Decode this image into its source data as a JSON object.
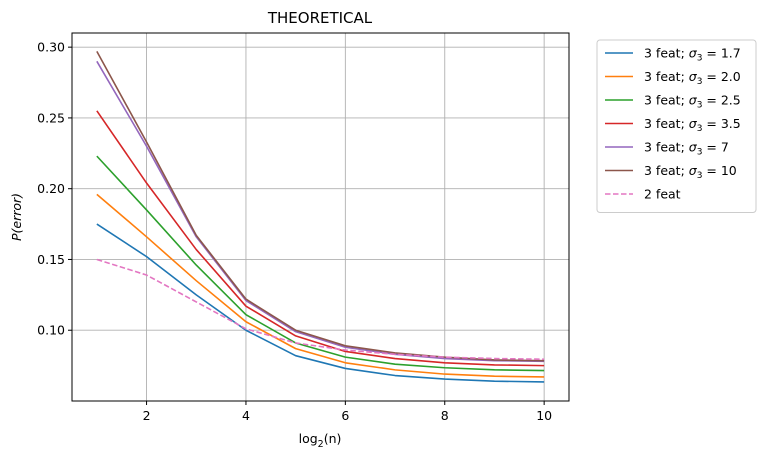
{
  "chart_data": {
    "type": "line",
    "title": "THEORETICAL",
    "xlabel": "log",
    "xlabel_sub": "2",
    "xlabel_arg": "(n)",
    "ylabel": "P(error)",
    "xlim": [
      0.5,
      10.5
    ],
    "ylim": [
      0.05,
      0.31
    ],
    "xticks": [
      2,
      4,
      6,
      8,
      10
    ],
    "yticks": [
      0.1,
      0.15,
      0.2,
      0.25,
      0.3
    ],
    "ytick_labels": [
      "0.10",
      "0.15",
      "0.20",
      "0.25",
      "0.30"
    ],
    "grid": true,
    "legend_position": "outside-top-right",
    "x": [
      1,
      2,
      3,
      4,
      5,
      6,
      7,
      8,
      9,
      10
    ],
    "series": [
      {
        "name": "3 feat; σ3 = 1.7",
        "label_prefix": "3 feat; ",
        "sym": "σ",
        "sub": "3",
        "label_suffix": " = 1.7",
        "color": "#1f77b4",
        "dashed": false,
        "values": [
          0.175,
          0.152,
          0.125,
          0.1,
          0.082,
          0.073,
          0.068,
          0.0655,
          0.064,
          0.0635
        ]
      },
      {
        "name": "3 feat; σ3 = 2.0",
        "label_prefix": "3 feat; ",
        "sym": "σ",
        "sub": "3",
        "label_suffix": " = 2.0",
        "color": "#ff7f0e",
        "dashed": false,
        "values": [
          0.196,
          0.166,
          0.135,
          0.106,
          0.087,
          0.077,
          0.072,
          0.069,
          0.0675,
          0.067
        ]
      },
      {
        "name": "3 feat; σ3 = 2.5",
        "label_prefix": "3 feat; ",
        "sym": "σ",
        "sub": "3",
        "label_suffix": " = 2.5",
        "color": "#2ca02c",
        "dashed": false,
        "values": [
          0.223,
          0.185,
          0.146,
          0.111,
          0.091,
          0.081,
          0.076,
          0.0735,
          0.072,
          0.0715
        ]
      },
      {
        "name": "3 feat; σ3 = 3.5",
        "label_prefix": "3 feat; ",
        "sym": "σ",
        "sub": "3",
        "label_suffix": " = 3.5",
        "color": "#d62728",
        "dashed": false,
        "values": [
          0.255,
          0.204,
          0.157,
          0.117,
          0.096,
          0.085,
          0.08,
          0.077,
          0.0755,
          0.075
        ]
      },
      {
        "name": "3 feat; σ3 = 7",
        "label_prefix": "3 feat; ",
        "sym": "σ",
        "sub": "3",
        "label_suffix": " = 7",
        "color": "#9467bd",
        "dashed": false,
        "values": [
          0.29,
          0.23,
          0.166,
          0.121,
          0.099,
          0.088,
          0.083,
          0.08,
          0.0785,
          0.078
        ]
      },
      {
        "name": "3 feat; σ3 = 10",
        "label_prefix": "3 feat; ",
        "sym": "σ",
        "sub": "3",
        "label_suffix": " = 10",
        "color": "#8c564b",
        "dashed": false,
        "values": [
          0.297,
          0.233,
          0.167,
          0.122,
          0.1,
          0.089,
          0.084,
          0.081,
          0.079,
          0.0785
        ]
      },
      {
        "name": "2 feat",
        "label_prefix": "2 feat",
        "sym": "",
        "sub": "",
        "label_suffix": "",
        "color": "#e377c2",
        "dashed": true,
        "values": [
          0.15,
          0.139,
          0.12,
          0.101,
          0.091,
          0.086,
          0.083,
          0.081,
          0.08,
          0.0795
        ]
      }
    ]
  }
}
